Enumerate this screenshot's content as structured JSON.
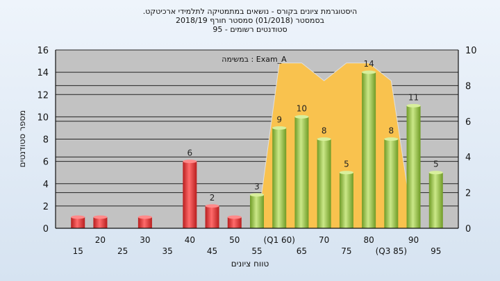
{
  "chart_data": {
    "type": "bar",
    "title": ".היסטוגרמת ציונים בקורס - נושאים במתמטיקה לתלמידי ארכיטקט",
    "subtitle_lines": [
      "בסמסטר  (01/2018)  סמסטר חורף 2018/19",
      "95 - סטודנטים רשומים"
    ],
    "xlabel": "טווח ציונים",
    "ylabel": "מספר סטודנטים",
    "annotation": "במשימה : Exam_A",
    "x_ticks": [
      "15",
      "20",
      "25",
      "30",
      "35",
      "40",
      "45",
      "50",
      "55",
      "(Q1 60)",
      "65",
      "70",
      "75",
      "80",
      "(Q3 85)",
      "90",
      "95"
    ],
    "ylim": [
      0,
      16
    ],
    "y_ticks": [
      "0",
      "2",
      "4",
      "6",
      "8",
      "10",
      "12",
      "14",
      "16"
    ],
    "y2lim": [
      0,
      10
    ],
    "y2_ticks": [
      "0",
      "2",
      "4",
      "6",
      "8",
      "10"
    ],
    "series": [
      {
        "x": [
          15,
          20,
          30,
          40,
          45,
          50
        ],
        "values": [
          1,
          1,
          1,
          6,
          2,
          1
        ],
        "labels": [
          "",
          "",
          "",
          "6",
          "2",
          ""
        ]
      },
      {
        "x": [
          55,
          60,
          65,
          70,
          75,
          80,
          85,
          90,
          95
        ],
        "values": [
          3,
          9,
          10,
          8,
          5,
          14,
          8,
          11,
          5
        ],
        "labels": [
          "3",
          "9",
          "10",
          "8",
          "5",
          "14",
          "8",
          "11",
          "5"
        ]
      }
    ],
    "quartile_band": {
      "x": [
        55,
        60,
        65,
        70,
        75,
        80,
        85,
        90
      ],
      "values": [
        0,
        9,
        9,
        8,
        9,
        9,
        8,
        0
      ]
    },
    "grid": true,
    "colors": {
      "plot_bg": "#c2c2c2",
      "band": "#f9c24e",
      "band_edge": "#e0e0e0",
      "red_bar": "#e63939",
      "green_bar": "#a8cf4e"
    }
  }
}
